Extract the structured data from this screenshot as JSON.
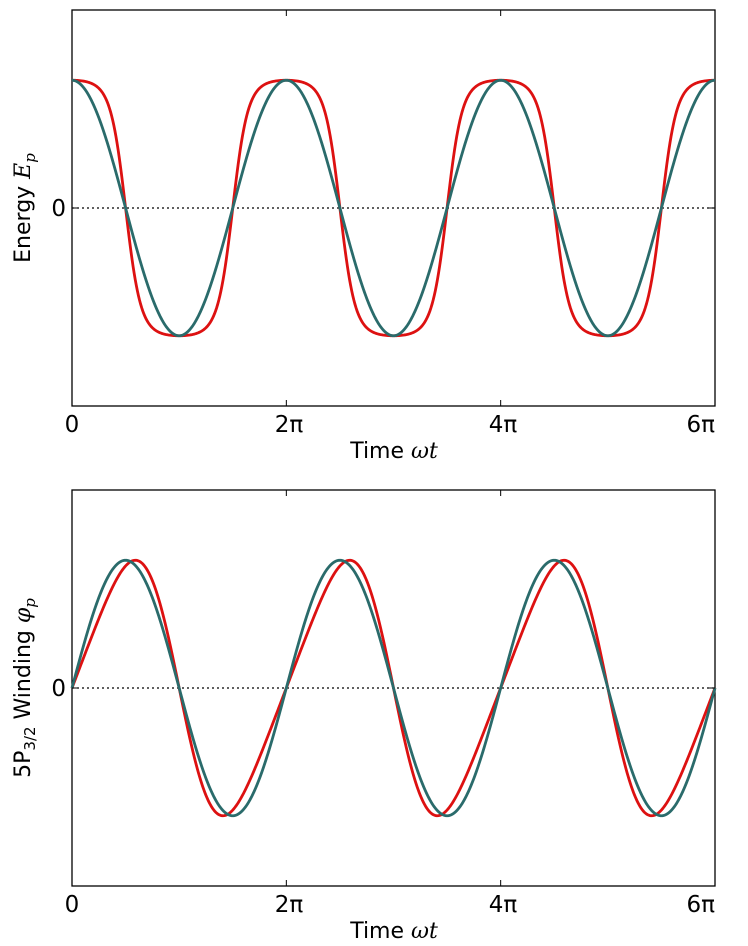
{
  "chart_data": [
    {
      "type": "line",
      "xlabel": "Time ωt",
      "ylabel": "Energy E_p",
      "xlabel_parts": {
        "text": "Time ",
        "math": "ωt"
      },
      "ylabel_parts": {
        "text": "Energy ",
        "math": "E",
        "sub": "p"
      },
      "xlim": [
        0,
        6
      ],
      "x_unit": "π",
      "xticks": [
        0,
        2,
        4,
        6
      ],
      "xtick_labels": [
        "0",
        "2π",
        "4π",
        "6π"
      ],
      "ylim": [
        -1.55,
        1.55
      ],
      "yticks": [
        0
      ],
      "ytick_labels": [
        "0"
      ],
      "zero_line": "dotted",
      "grid": false,
      "legend": "none",
      "series": [
        {
          "color": "#dd1111",
          "kind": "flattened-cosine",
          "amplitude": 1.0,
          "period": 2,
          "flatten": 2.2
        },
        {
          "color": "#2a6b6b",
          "kind": "cosine",
          "amplitude": 1.0,
          "period": 2
        }
      ]
    },
    {
      "type": "line",
      "xlabel": "Time ωt",
      "ylabel": "5P3/2 Winding φp",
      "xlabel_parts": {
        "text": "Time ",
        "math": "ωt"
      },
      "ylabel_parts": {
        "text": "5P",
        "textsub": "3/2",
        "text2": " Winding ",
        "math": "φ",
        "sub": "p"
      },
      "xlim": [
        0,
        6
      ],
      "x_unit": "π",
      "xticks": [
        0,
        2,
        4,
        6
      ],
      "xtick_labels": [
        "0",
        "2π",
        "4π",
        "6π"
      ],
      "ylim": [
        -1.55,
        1.55
      ],
      "yticks": [
        0
      ],
      "ytick_labels": [
        "0"
      ],
      "zero_line": "dotted",
      "grid": false,
      "legend": "none",
      "series": [
        {
          "color": "#dd1111",
          "kind": "skewed-sine",
          "amplitude": 1.0,
          "period": 2,
          "skew": 0.3
        },
        {
          "color": "#2a6b6b",
          "kind": "sine",
          "amplitude": 1.0,
          "period": 2
        }
      ]
    }
  ],
  "colors": {
    "red_series": "#dd1111",
    "teal_series": "#2a6b6b",
    "axis": "#000000"
  }
}
